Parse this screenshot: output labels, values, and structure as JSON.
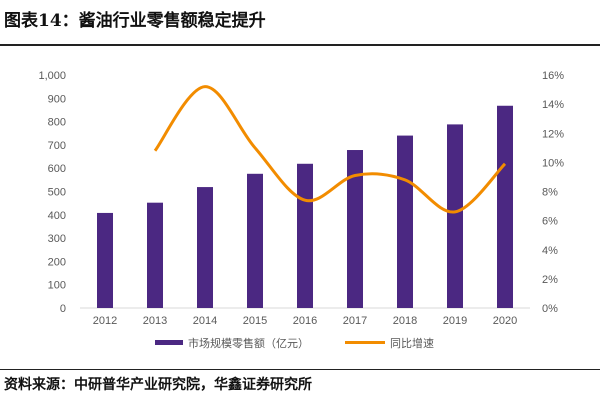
{
  "title": "图表14：酱油行业零售额稳定提升",
  "source": "资料来源：中研普华产业研究院，华鑫证券研究所",
  "chart_data": {
    "type": "bar+line",
    "categories": [
      "2012",
      "2013",
      "2014",
      "2015",
      "2016",
      "2017",
      "2018",
      "2019",
      "2020"
    ],
    "series": [
      {
        "name": "市场规模零售额（亿元）",
        "type": "bar",
        "axis": "left",
        "color": "#4B2882",
        "values": [
          408,
          452,
          519,
          576,
          619,
          678,
          740,
          788,
          868
        ]
      },
      {
        "name": "同比增速",
        "type": "line",
        "axis": "right",
        "color": "#F28C00",
        "values": [
          null,
          10.8,
          15.2,
          11.0,
          7.4,
          9.1,
          8.8,
          6.6,
          9.9
        ]
      }
    ],
    "ylim_left": [
      0,
      1000
    ],
    "yticks_left": [
      "0",
      "100",
      "200",
      "300",
      "400",
      "500",
      "600",
      "700",
      "800",
      "900",
      "1,000"
    ],
    "ylim_right": [
      0,
      16
    ],
    "yticks_right": [
      "0%",
      "2%",
      "4%",
      "6%",
      "8%",
      "10%",
      "12%",
      "14%",
      "16%"
    ],
    "grid": false,
    "legend": "bottom"
  }
}
